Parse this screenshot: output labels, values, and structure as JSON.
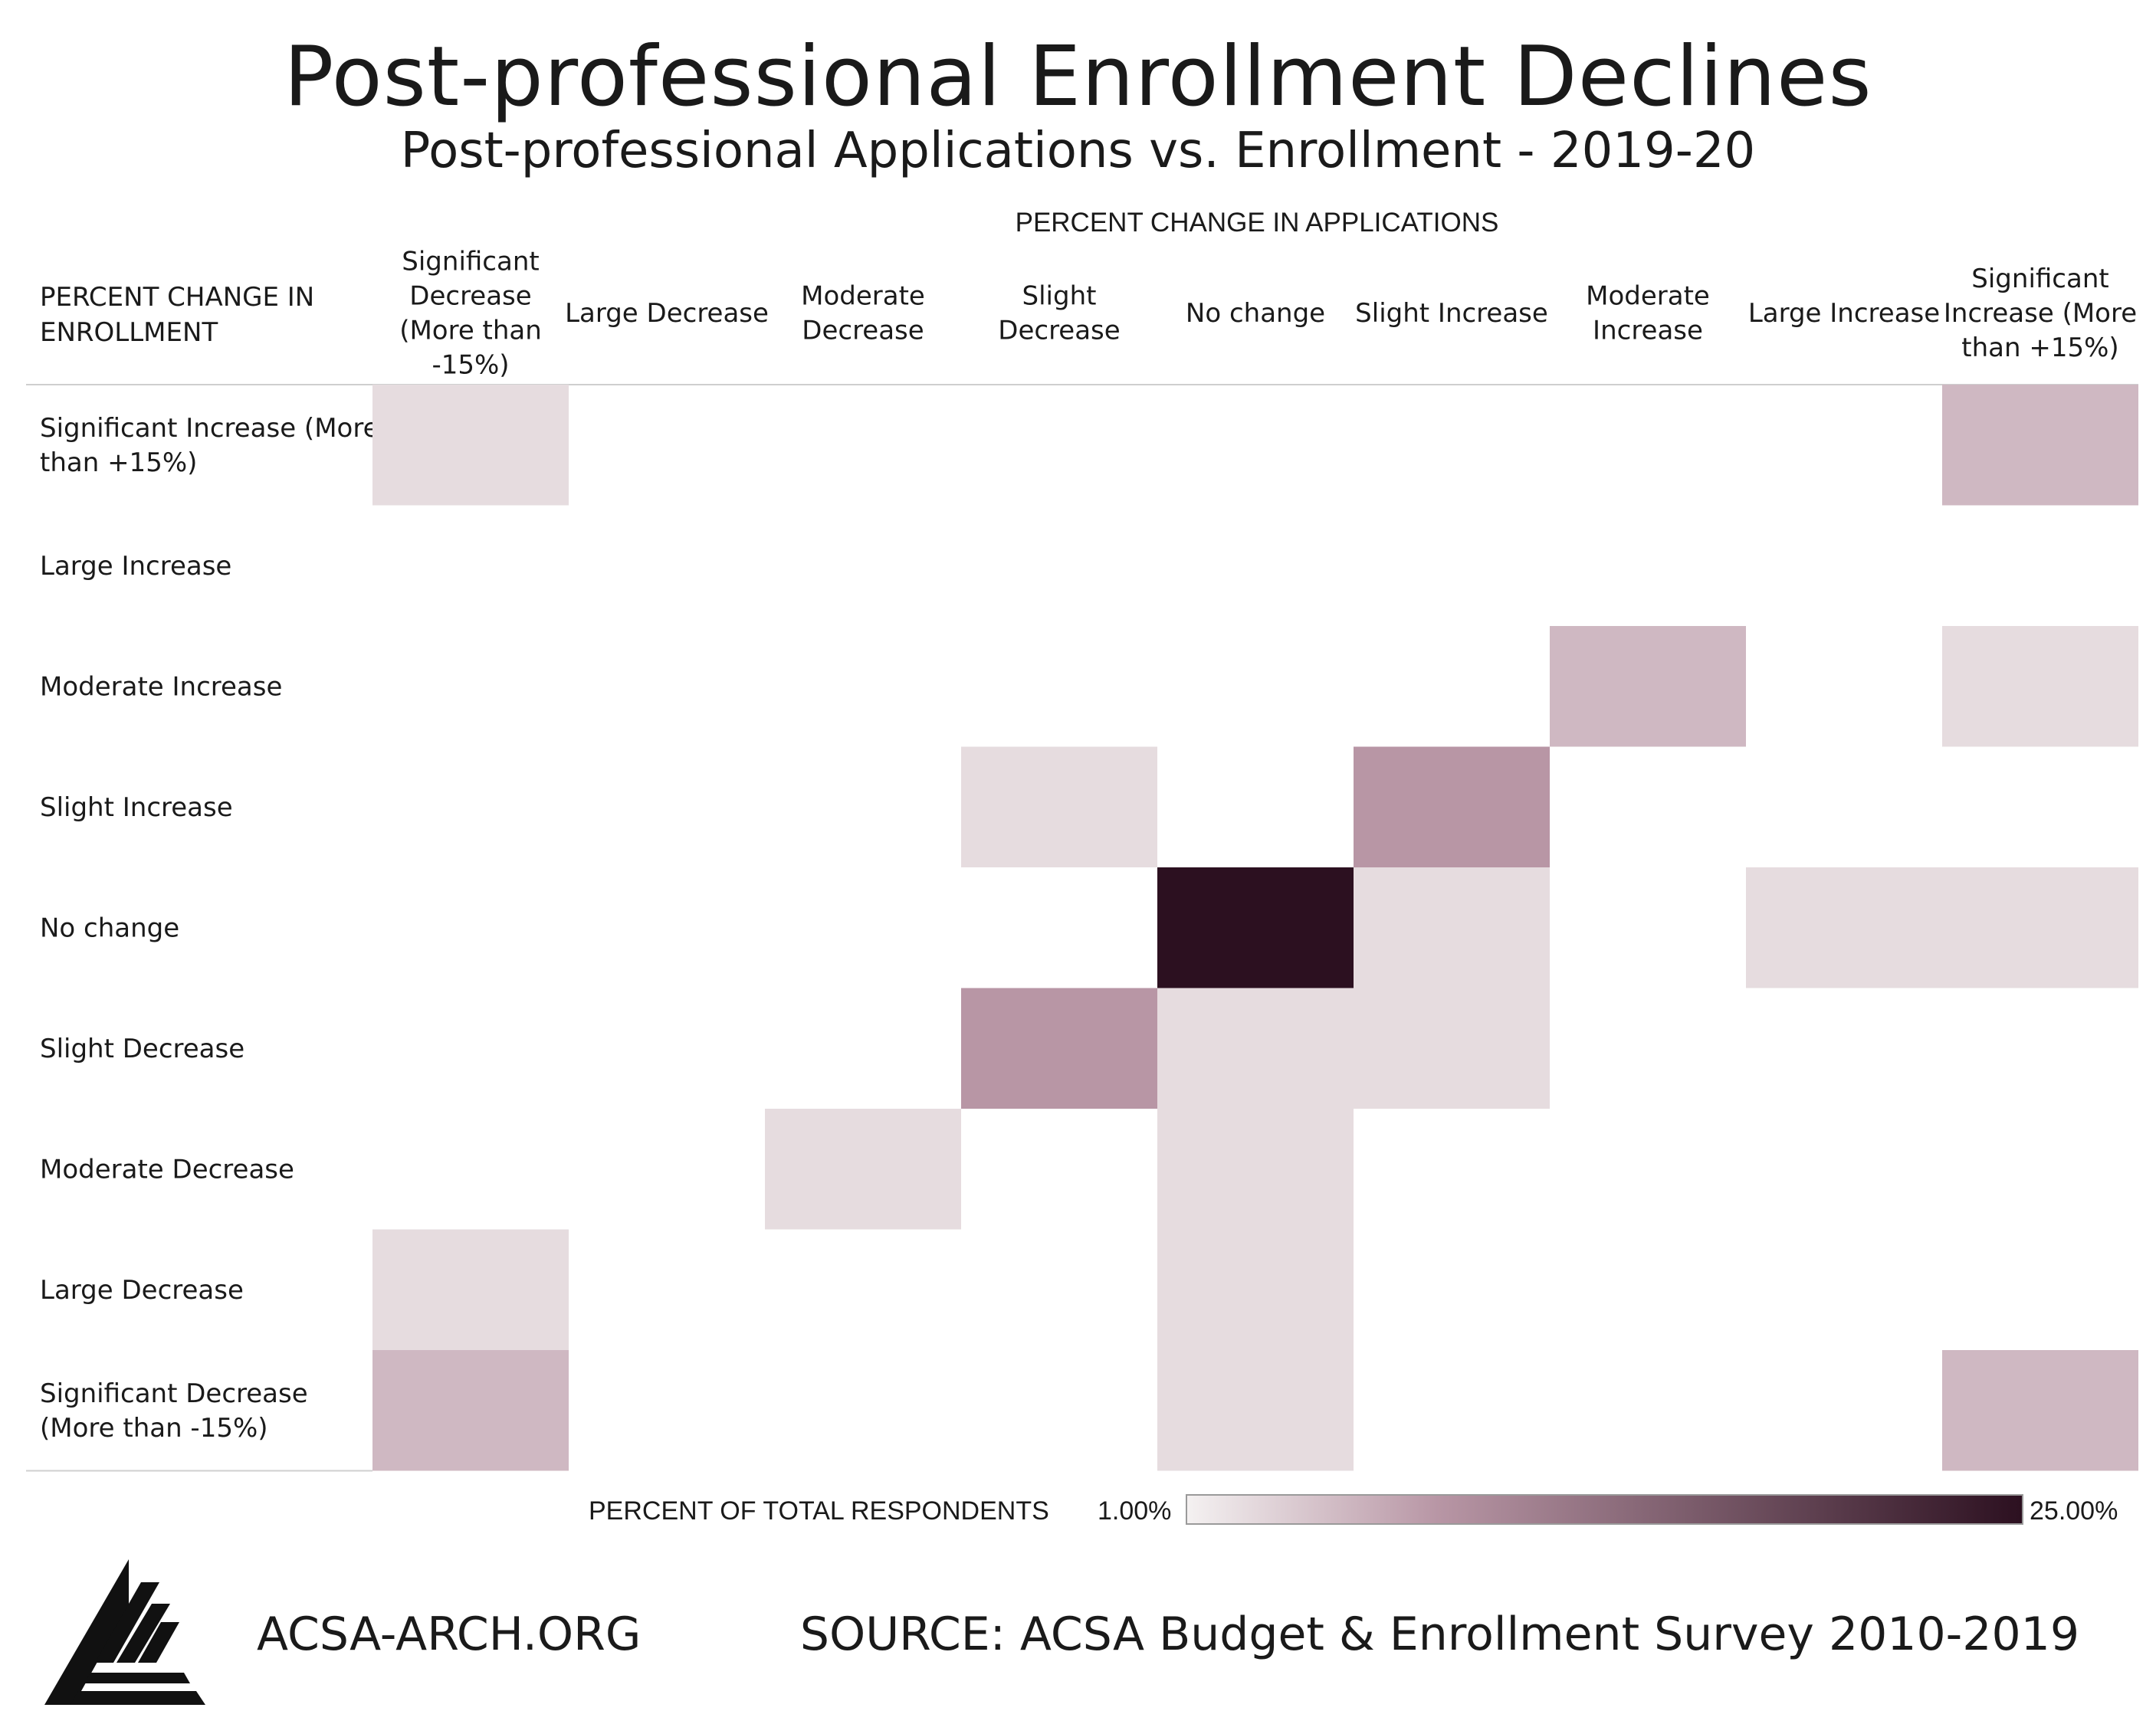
{
  "title": "Post-professional Enrollment Declines",
  "subtitle": "Post-professional Applications vs. Enrollment - 2019-20",
  "colors": {
    "low": "#f4f1f1",
    "mid": "#b896a5",
    "high": "#2c1020",
    "line": "#cfcfcf"
  },
  "chart_data": {
    "type": "heatmap",
    "x_title": "PERCENT CHANGE IN APPLICATIONS",
    "y_title": "PERCENT CHANGE IN ENROLLMENT",
    "columns": [
      "Significant Decrease (More than -15%)",
      "Large Decrease",
      "Moderate Decrease",
      "Slight Decrease",
      "No change",
      "Slight Increase",
      "Moderate Increase",
      "Large Increase",
      "Significant Increase (More than +15%)"
    ],
    "column_lines": [
      [
        "Significant",
        "Decrease",
        "(More than",
        "-15%)"
      ],
      [
        "Large Decrease"
      ],
      [
        "Moderate",
        "Decrease"
      ],
      [
        "Slight",
        "Decrease"
      ],
      [
        "No change"
      ],
      [
        "Slight Increase"
      ],
      [
        "Moderate",
        "Increase"
      ],
      [
        "Large Increase"
      ],
      [
        "Significant",
        "Increase (More",
        "than +15%)"
      ]
    ],
    "rows": [
      "Significant Increase (More than +15%)",
      "Large Increase",
      "Moderate Increase",
      "Slight Increase",
      "No change",
      "Slight Decrease",
      "Moderate Decrease",
      "Large Decrease",
      "Significant Decrease (More than -15%)"
    ],
    "row_lines": [
      [
        "Significant Increase (More",
        "than +15%)"
      ],
      [
        "Large Increase"
      ],
      [
        "Moderate Increase"
      ],
      [
        "Slight Increase"
      ],
      [
        "No change"
      ],
      [
        "Slight Decrease"
      ],
      [
        "Moderate Decrease"
      ],
      [
        "Large Decrease"
      ],
      [
        "Significant Decrease",
        "(More than -15%)"
      ]
    ],
    "values": [
      [
        2.7,
        null,
        null,
        null,
        null,
        null,
        null,
        null,
        5.5
      ],
      [
        null,
        null,
        null,
        null,
        null,
        null,
        null,
        null,
        null
      ],
      [
        null,
        null,
        null,
        null,
        null,
        null,
        5.5,
        null,
        2.7
      ],
      [
        null,
        null,
        null,
        2.7,
        null,
        8.2,
        null,
        null,
        null
      ],
      [
        null,
        null,
        null,
        null,
        25,
        2.7,
        null,
        2.7,
        2.7
      ],
      [
        null,
        null,
        null,
        8.2,
        2.7,
        2.7,
        null,
        null,
        null
      ],
      [
        null,
        null,
        2.7,
        null,
        2.7,
        null,
        null,
        null,
        null
      ],
      [
        2.7,
        null,
        null,
        null,
        2.7,
        null,
        null,
        null,
        null
      ],
      [
        5.5,
        null,
        null,
        null,
        2.7,
        null,
        null,
        null,
        5.5
      ]
    ],
    "legend": {
      "title": "PERCENT OF TOTAL RESPONDENTS",
      "min_label": "1.00%",
      "max_label": "25.00%",
      "min": 1,
      "max": 25
    }
  },
  "footer": {
    "site": "ACSA-ARCH.ORG",
    "source": "SOURCE: ACSA Budget & Enrollment Survey 2010-2019"
  }
}
